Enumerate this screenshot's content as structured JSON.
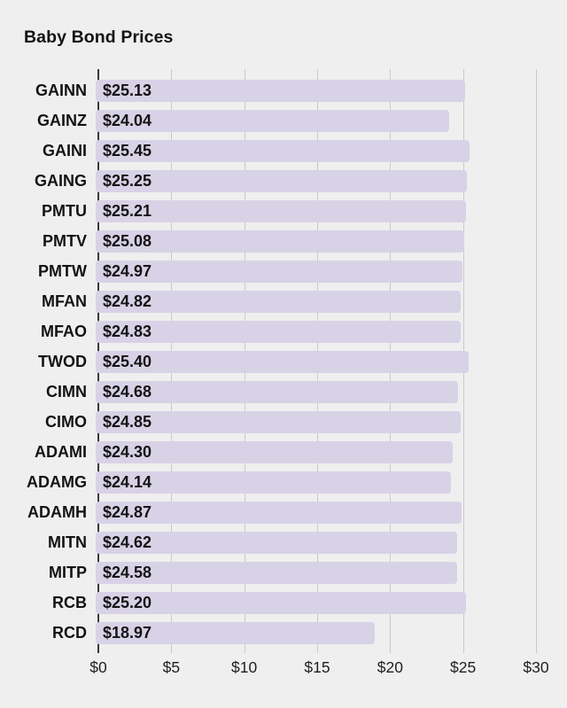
{
  "chart_data": {
    "type": "bar",
    "orientation": "horizontal",
    "title": "Baby Bond Prices",
    "categories": [
      "GAINN",
      "GAINZ",
      "GAINI",
      "GAING",
      "PMTU",
      "PMTV",
      "PMTW",
      "MFAN",
      "MFAO",
      "TWOD",
      "CIMN",
      "CIMO",
      "ADAMI",
      "ADAMG",
      "ADAMH",
      "MITN",
      "MITP",
      "RCB",
      "RCD"
    ],
    "values": [
      25.13,
      24.04,
      25.45,
      25.25,
      25.21,
      25.08,
      24.97,
      24.82,
      24.83,
      25.4,
      24.68,
      24.85,
      24.3,
      24.14,
      24.87,
      24.62,
      24.58,
      25.2,
      18.97
    ],
    "value_labels": [
      "$25.13",
      "$24.04",
      "$25.45",
      "$25.25",
      "$25.21",
      "$25.08",
      "$24.97",
      "$24.82",
      "$24.83",
      "$25.40",
      "$24.68",
      "$24.85",
      "$24.30",
      "$24.14",
      "$24.87",
      "$24.62",
      "$24.58",
      "$25.20",
      "$18.97"
    ],
    "x_ticks": [
      "$0",
      "$5",
      "$10",
      "$15",
      "$20",
      "$25",
      "$30"
    ],
    "xlim": [
      0,
      30
    ],
    "xlabel": "",
    "ylabel": "",
    "grid": true,
    "legend": false,
    "colors": {
      "bar": "#d8d2e7",
      "background": "#efefef",
      "gridline": "#c9c9c9",
      "zero_line": "#3a3a3a",
      "text": "#131313"
    }
  }
}
